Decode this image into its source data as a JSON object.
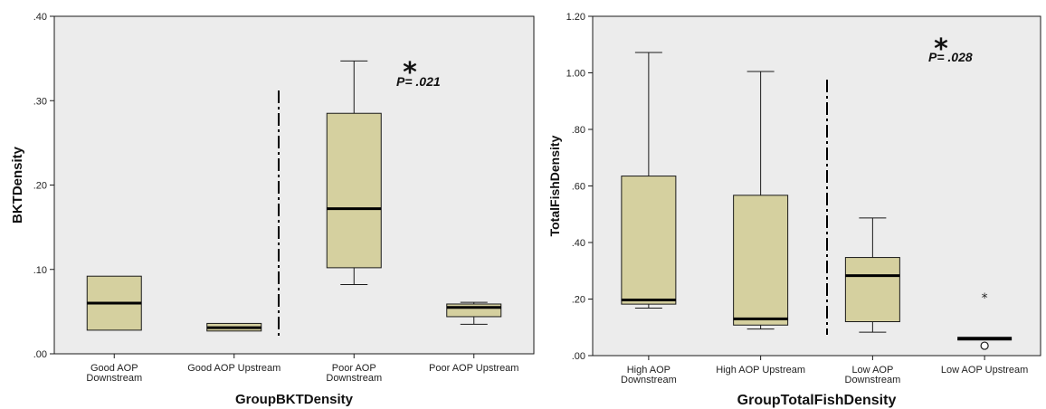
{
  "chart_data": [
    {
      "type": "box",
      "xlabel": "GroupBKTDensity",
      "ylabel": "BKTDensity",
      "ylim": [
        0,
        0.4
      ],
      "yticks": [
        ".00",
        ".10",
        ".20",
        ".30",
        ".40"
      ],
      "ytick_values": [
        0,
        0.1,
        0.2,
        0.3,
        0.4
      ],
      "categories": [
        [
          "Good AOP",
          "Downstream"
        ],
        [
          "Good AOP Upstream"
        ],
        [
          "Poor AOP",
          "Downstream"
        ],
        [
          "Poor AOP Upstream"
        ]
      ],
      "boxes": [
        {
          "min": 0.028,
          "q1": 0.028,
          "median": 0.06,
          "q3": 0.092,
          "max": 0.092
        },
        {
          "min": 0.027,
          "q1": 0.027,
          "median": 0.031,
          "q3": 0.036,
          "max": 0.036
        },
        {
          "min": 0.082,
          "q1": 0.102,
          "median": 0.172,
          "q3": 0.285,
          "max": 0.347
        },
        {
          "min": 0.035,
          "q1": 0.044,
          "median": 0.055,
          "q3": 0.059,
          "max": 0.061
        }
      ],
      "divider_after_index": 1,
      "annotation": {
        "star": "*",
        "text": "P= .021"
      },
      "grid": false,
      "box_color": "#d5d09f"
    },
    {
      "type": "box",
      "xlabel": "GroupTotalFishDensity",
      "ylabel": "TotalFishDensity",
      "ylim": [
        0,
        1.2
      ],
      "yticks": [
        ".00",
        ".20",
        ".40",
        ".60",
        ".80",
        "1.00",
        "1.20"
      ],
      "ytick_values": [
        0,
        0.2,
        0.4,
        0.6,
        0.8,
        1.0,
        1.2
      ],
      "categories": [
        [
          "High AOP",
          "Downstream"
        ],
        [
          "High AOP Upstream"
        ],
        [
          "Low AOP",
          "Downstream"
        ],
        [
          "Low AOP Upstream"
        ]
      ],
      "boxes": [
        {
          "min": 0.168,
          "q1": 0.182,
          "median": 0.197,
          "q3": 0.635,
          "max": 1.072
        },
        {
          "min": 0.094,
          "q1": 0.108,
          "median": 0.13,
          "q3": 0.567,
          "max": 1.005
        },
        {
          "min": 0.083,
          "q1": 0.12,
          "median": 0.283,
          "q3": 0.347,
          "max": 0.487
        },
        {
          "min": 0.06,
          "q1": 0.06,
          "median": 0.06,
          "q3": 0.06,
          "max": 0.06
        }
      ],
      "outliers": [
        {
          "category_index": 3,
          "value": 0.035,
          "marker": "circle"
        },
        {
          "category_index": 3,
          "value": 0.217,
          "marker": "star"
        }
      ],
      "divider_after_index": 1,
      "annotation": {
        "star": "*",
        "text": "P= .028"
      },
      "grid": false,
      "box_color": "#d5d09f"
    }
  ],
  "colors": {
    "plot_bg": "#ececec",
    "box_fill": "#d5d09f",
    "line": "#1a1a1a"
  }
}
